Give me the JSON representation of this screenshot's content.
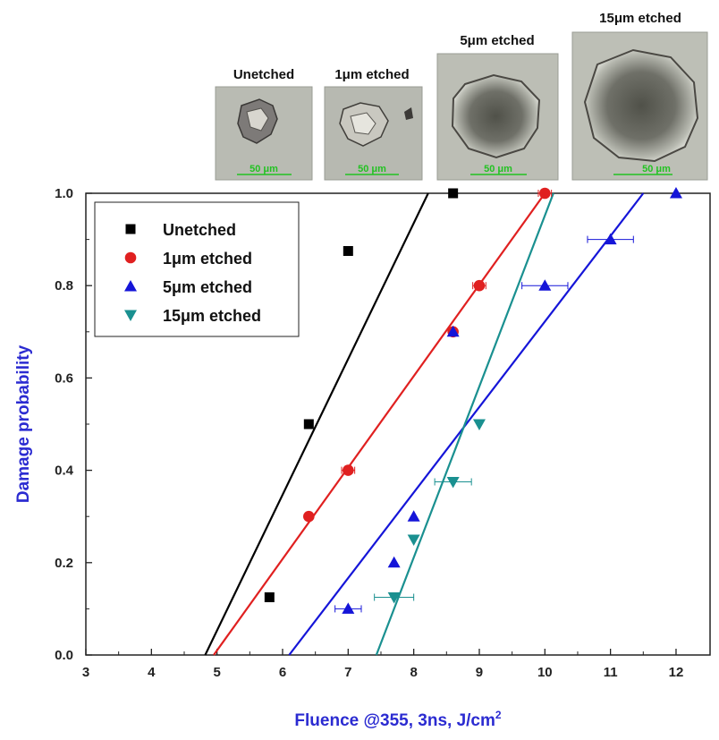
{
  "photos": [
    {
      "label": "Unetched",
      "scale_label": "50 μm"
    },
    {
      "label": "1μm etched",
      "scale_label": "50 μm"
    },
    {
      "label": "5μm etched",
      "scale_label": "50 μm"
    },
    {
      "label": "15μm etched",
      "scale_label": "50 μm"
    }
  ],
  "chart_data": {
    "type": "scatter",
    "title": "",
    "xlabel": "Fluence @355, 3ns, J/cm",
    "xlabel_superscript": "2",
    "ylabel": "Damage probability",
    "xlim": [
      3,
      12.5
    ],
    "ylim": [
      0,
      1.0
    ],
    "x_ticks": [
      3,
      4,
      5,
      6,
      7,
      8,
      9,
      10,
      11,
      12
    ],
    "x_tick_labels": [
      "3",
      "4",
      "5",
      "6",
      "7",
      "8",
      "9",
      "10",
      "11",
      "12"
    ],
    "y_ticks": [
      0.0,
      0.2,
      0.4,
      0.6,
      0.8,
      1.0
    ],
    "y_tick_labels": [
      "0.0",
      "0.2",
      "0.4",
      "0.6",
      "0.8",
      "1.0"
    ],
    "grid": false,
    "legend_position": "top-left",
    "series": [
      {
        "name": "Unetched",
        "color": "#000000",
        "marker": "square",
        "points": [
          {
            "x": 5.8,
            "y": 0.125
          },
          {
            "x": 6.4,
            "y": 0.5
          },
          {
            "x": 7.0,
            "y": 0.875
          },
          {
            "x": 8.6,
            "y": 1.0
          }
        ],
        "fit": {
          "x": [
            4.82,
            8.22
          ],
          "y": [
            0.0,
            1.0
          ]
        }
      },
      {
        "name": "1μm etched",
        "color": "#e02020",
        "marker": "circle",
        "points": [
          {
            "x": 6.4,
            "y": 0.3
          },
          {
            "x": 7.0,
            "y": 0.4,
            "xerr": 0.1
          },
          {
            "x": 8.6,
            "y": 0.7
          },
          {
            "x": 9.0,
            "y": 0.8,
            "xerr": 0.1
          },
          {
            "x": 10.0,
            "y": 1.0,
            "xerr": 0.1
          }
        ],
        "fit": {
          "x": [
            4.95,
            10.0
          ],
          "y": [
            0.0,
            1.0
          ]
        }
      },
      {
        "name": "5μm etched",
        "color": "#1515d8",
        "marker": "triangle-up",
        "points": [
          {
            "x": 7.0,
            "y": 0.1,
            "xerr": 0.2
          },
          {
            "x": 7.7,
            "y": 0.2
          },
          {
            "x": 8.0,
            "y": 0.3
          },
          {
            "x": 8.6,
            "y": 0.7
          },
          {
            "x": 10.0,
            "y": 0.8,
            "xerr": 0.35
          },
          {
            "x": 11.0,
            "y": 0.9,
            "xerr": 0.35
          },
          {
            "x": 12.0,
            "y": 1.0
          }
        ],
        "fit": {
          "x": [
            6.1,
            11.5
          ],
          "y": [
            0.0,
            1.0
          ]
        }
      },
      {
        "name": "15μm etched",
        "color": "#1a9090",
        "marker": "triangle-down",
        "points": [
          {
            "x": 7.7,
            "y": 0.125,
            "xerr": 0.3
          },
          {
            "x": 8.0,
            "y": 0.25
          },
          {
            "x": 8.6,
            "y": 0.375,
            "xerr": 0.28
          },
          {
            "x": 9.0,
            "y": 0.5
          }
        ],
        "fit": {
          "x": [
            7.43,
            10.13
          ],
          "y": [
            0.0,
            1.0
          ]
        }
      }
    ]
  }
}
